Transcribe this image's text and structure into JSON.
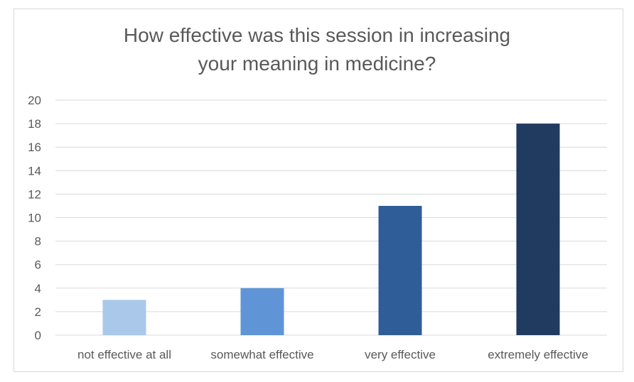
{
  "chart_data": {
    "type": "bar",
    "title_lines": [
      "How effective was this session in increasing",
      "your meaning in medicine?"
    ],
    "categories": [
      "not effective at all",
      "somewhat effective",
      "very effective",
      "extremely effective"
    ],
    "values": [
      3,
      4,
      11,
      18
    ],
    "colors": [
      "#A9C8EA",
      "#5F95D6",
      "#2F5D98",
      "#203A60"
    ],
    "ylim": [
      0,
      20
    ],
    "yticks": [
      0,
      2,
      4,
      6,
      8,
      10,
      12,
      14,
      16,
      18,
      20
    ],
    "grid": true,
    "legend": "none",
    "xlabel": "",
    "ylabel": ""
  }
}
